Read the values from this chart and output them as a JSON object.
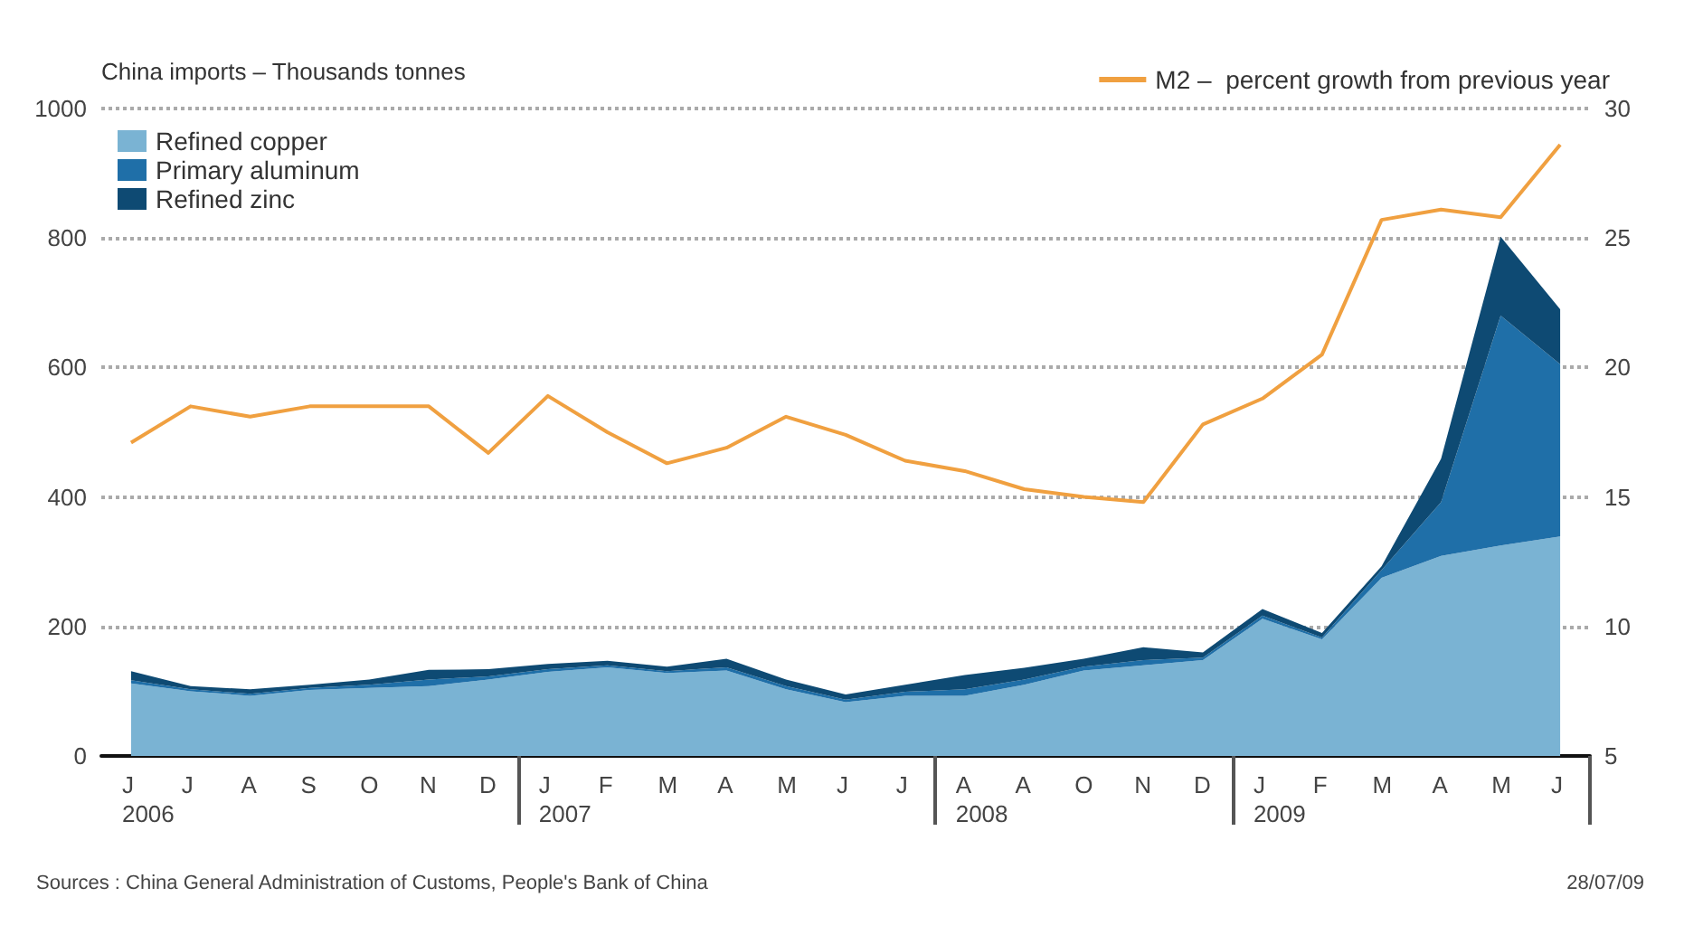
{
  "chart_data": {
    "type": "area",
    "stacked": true,
    "ylabel": "China imports – Thousands tonnes",
    "categories": [
      "J\n2006",
      "J",
      "A",
      "S",
      "O",
      "N",
      "D",
      "J\n2007",
      "F",
      "M",
      "A",
      "M",
      "J",
      "J",
      "A\n2008",
      "A",
      "O",
      "N",
      "D",
      "J\n2009",
      "F",
      "M",
      "A",
      "M",
      "J"
    ],
    "series": [
      {
        "name": "Refined copper",
        "color": "#7ab3d3",
        "values": [
          112,
          100,
          93,
          102,
          105,
          108,
          118,
          130,
          137,
          128,
          132,
          103,
          83,
          93,
          93,
          110,
          132,
          140,
          148,
          212,
          180,
          275,
          309,
          325,
          339
        ]
      },
      {
        "name": "Primary aluminum",
        "color": "#1f6fa8",
        "values": [
          5,
          3,
          3,
          3,
          5,
          10,
          5,
          4,
          3,
          3,
          5,
          5,
          4,
          6,
          10,
          8,
          6,
          8,
          4,
          5,
          3,
          12,
          83,
          355,
          266
        ]
      },
      {
        "name": "Refined zinc",
        "color": "#0e4a73",
        "values": [
          14,
          5,
          7,
          5,
          8,
          15,
          11,
          8,
          7,
          7,
          13,
          10,
          8,
          11,
          22,
          18,
          12,
          20,
          8,
          10,
          7,
          6,
          67,
          122,
          85
        ]
      },
      {
        "name": "M2 –  percent growth from previous year",
        "type": "line",
        "axis": "y2",
        "color": "#f0a040",
        "values": [
          17.1,
          18.5,
          18.1,
          18.5,
          18.5,
          18.5,
          16.7,
          18.9,
          17.5,
          16.3,
          16.9,
          18.1,
          17.4,
          16.4,
          16.0,
          15.3,
          15.0,
          14.8,
          17.8,
          18.8,
          20.5,
          25.7,
          26.1,
          25.8,
          28.6
        ]
      }
    ],
    "ylim": [
      0,
      1000
    ],
    "yticks": [
      0,
      200,
      400,
      600,
      800,
      1000
    ],
    "y2lim": [
      5,
      30
    ],
    "y2ticks": [
      5,
      10,
      15,
      20,
      25,
      30
    ],
    "grid": "y",
    "legend": "top",
    "marker": "none",
    "annotations": [
      "Sources : China General Administration of Customs, People's Bank of China",
      "28/07/09"
    ]
  }
}
